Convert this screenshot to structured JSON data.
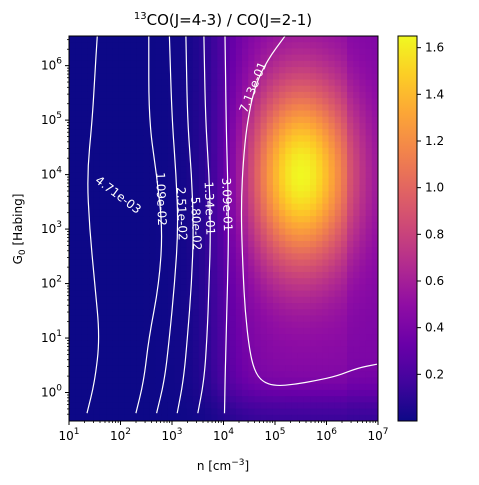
{
  "chart_data": {
    "type": "heatmap",
    "title_sup": "13",
    "title_main": "CO(J=4-3) / CO(J=2-1)",
    "xlabel_main": "n [cm",
    "xlabel_sup": "−3",
    "xlabel_end": "]",
    "ylabel_main": "G",
    "ylabel_sub": "0",
    "ylabel_end": " [Habing]",
    "x_scale": "log",
    "y_scale": "log",
    "xlim": [
      10,
      10000000
    ],
    "ylim": [
      0.3,
      3500000
    ],
    "x_ticks": [
      {
        "exp": 1,
        "label_base": "10",
        "label_exp": "1"
      },
      {
        "exp": 2,
        "label_base": "10",
        "label_exp": "2"
      },
      {
        "exp": 3,
        "label_base": "10",
        "label_exp": "3"
      },
      {
        "exp": 4,
        "label_base": "10",
        "label_exp": "4"
      },
      {
        "exp": 5,
        "label_base": "10",
        "label_exp": "5"
      },
      {
        "exp": 6,
        "label_base": "10",
        "label_exp": "6"
      },
      {
        "exp": 7,
        "label_base": "10",
        "label_exp": "7"
      }
    ],
    "y_ticks": [
      {
        "exp": 0,
        "label_base": "10",
        "label_exp": "0"
      },
      {
        "exp": 1,
        "label_base": "10",
        "label_exp": "1"
      },
      {
        "exp": 2,
        "label_base": "10",
        "label_exp": "2"
      },
      {
        "exp": 3,
        "label_base": "10",
        "label_exp": "3"
      },
      {
        "exp": 4,
        "label_base": "10",
        "label_exp": "4"
      },
      {
        "exp": 5,
        "label_base": "10",
        "label_exp": "5"
      },
      {
        "exp": 6,
        "label_base": "10",
        "label_exp": "6"
      }
    ],
    "colormap": "plasma",
    "colorbar": {
      "vmin": 0.0,
      "vmax": 1.65,
      "ticks": [
        0.2,
        0.4,
        0.6,
        0.8,
        1.0,
        1.2,
        1.4,
        1.6
      ],
      "tick_labels": [
        "0.2",
        "0.4",
        "0.6",
        "0.8",
        "1.0",
        "1.2",
        "1.4",
        "1.6"
      ]
    },
    "peak": {
      "log_n": 5.5,
      "log_g0": 4.0,
      "value": 1.65
    },
    "contours": [
      {
        "level": "4.71e-03",
        "points": [
          [
            1.35,
            -0.38
          ],
          [
            1.5,
            0.2
          ],
          [
            1.6,
            1.0
          ],
          [
            1.5,
            2.0
          ],
          [
            1.4,
            3.0
          ],
          [
            1.35,
            4.0
          ],
          [
            1.45,
            5.0
          ],
          [
            1.5,
            5.8
          ],
          [
            1.55,
            6.55
          ]
        ],
        "label_at": [
          1.95,
          3.62
        ],
        "label_angle": 37
      },
      {
        "level": "1.09e-02",
        "points": [
          [
            2.3,
            -0.38
          ],
          [
            2.45,
            0.2
          ],
          [
            2.55,
            1.0
          ],
          [
            2.75,
            2.0
          ],
          [
            2.82,
            3.0
          ],
          [
            2.7,
            4.0
          ],
          [
            2.55,
            5.0
          ],
          [
            2.55,
            6.55
          ]
        ],
        "label_at": [
          2.78,
          3.55
        ],
        "label_angle": 88
      },
      {
        "level": "2.51e-02",
        "points": [
          [
            2.7,
            -0.38
          ],
          [
            2.85,
            0.2
          ],
          [
            2.95,
            1.0
          ],
          [
            3.05,
            2.0
          ],
          [
            3.12,
            3.0
          ],
          [
            3.08,
            4.0
          ],
          [
            3.0,
            5.0
          ],
          [
            2.95,
            6.55
          ]
        ],
        "label_at": [
          3.18,
          3.28
        ],
        "label_angle": 88
      },
      {
        "level": "5.80e-02",
        "points": [
          [
            3.1,
            -0.38
          ],
          [
            3.22,
            0.2
          ],
          [
            3.3,
            1.0
          ],
          [
            3.38,
            2.0
          ],
          [
            3.42,
            3.0
          ],
          [
            3.38,
            4.0
          ],
          [
            3.3,
            5.0
          ],
          [
            3.27,
            6.55
          ]
        ],
        "label_at": [
          3.46,
          3.1
        ],
        "label_angle": 88
      },
      {
        "level": "1.34e-01",
        "points": [
          [
            3.5,
            -0.38
          ],
          [
            3.62,
            0.2
          ],
          [
            3.68,
            1.0
          ],
          [
            3.72,
            2.0
          ],
          [
            3.75,
            3.0
          ],
          [
            3.72,
            4.0
          ],
          [
            3.65,
            5.0
          ],
          [
            3.62,
            6.55
          ]
        ],
        "label_at": [
          3.72,
          3.38
        ],
        "label_angle": 88
      },
      {
        "level": "3.09e-01",
        "points": [
          [
            4.02,
            -0.38
          ],
          [
            4.03,
            0.2
          ],
          [
            4.05,
            1.0
          ],
          [
            4.08,
            2.0
          ],
          [
            4.1,
            3.0
          ],
          [
            4.08,
            4.0
          ],
          [
            4.05,
            5.0
          ],
          [
            4.03,
            6.55
          ]
        ],
        "label_at": [
          4.06,
          3.45
        ],
        "label_angle": 88
      },
      {
        "level": "7.13e-01",
        "points": [
          [
            6.98,
            0.52
          ],
          [
            6.6,
            0.45
          ],
          [
            6.2,
            0.3
          ],
          [
            5.8,
            0.22
          ],
          [
            5.4,
            0.15
          ],
          [
            5.0,
            0.12
          ],
          [
            4.75,
            0.2
          ],
          [
            4.6,
            0.4
          ],
          [
            4.5,
            0.8
          ],
          [
            4.42,
            1.5
          ],
          [
            4.38,
            2.2
          ],
          [
            4.35,
            3.0
          ],
          [
            4.35,
            3.6
          ],
          [
            4.38,
            4.2
          ],
          [
            4.45,
            4.9
          ],
          [
            4.6,
            5.6
          ],
          [
            4.85,
            6.1
          ],
          [
            5.2,
            6.55
          ]
        ],
        "label_at": [
          4.58,
          5.6
        ],
        "label_angle": -68
      }
    ]
  }
}
